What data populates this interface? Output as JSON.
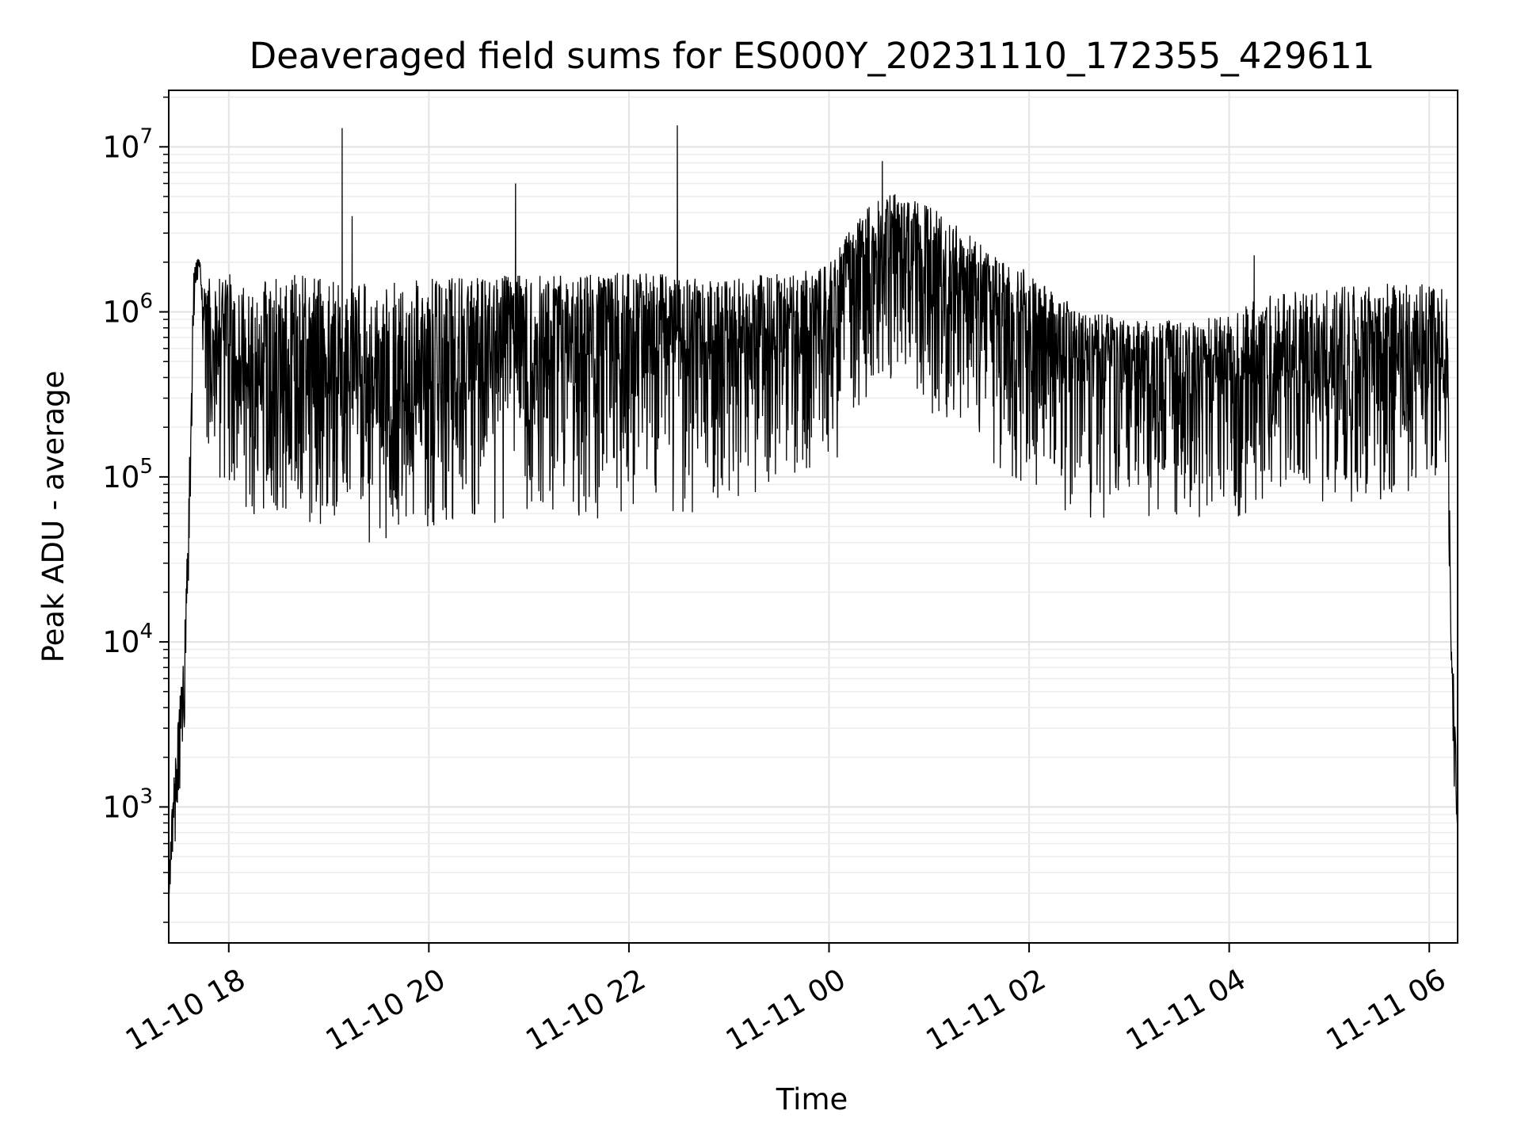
{
  "chart_data": {
    "type": "line",
    "title": "Deaveraged field sums for ES000Y_20231110_172355_429611",
    "xlabel": "Time",
    "ylabel": "Peak ADU - average",
    "yscale": "log",
    "xlim": [
      "2023-11-10 17:24",
      "2023-11-11 06:17"
    ],
    "ylim": [
      150,
      22000000
    ],
    "x_ticks": [
      "11-10 18",
      "11-10 20",
      "11-10 22",
      "11-11 00",
      "11-11 02",
      "11-11 04",
      "11-11 06"
    ],
    "x_tick_times": [
      "2023-11-10 18:00",
      "2023-11-10 20:00",
      "2023-11-10 22:00",
      "2023-11-11 00:00",
      "2023-11-11 02:00",
      "2023-11-11 04:00",
      "2023-11-11 06:00"
    ],
    "y_ticks": [
      {
        "base": "10",
        "exp": "3",
        "value": 1000
      },
      {
        "base": "10",
        "exp": "4",
        "value": 10000
      },
      {
        "base": "10",
        "exp": "5",
        "value": 100000
      },
      {
        "base": "10",
        "exp": "6",
        "value": 1000000
      },
      {
        "base": "10",
        "exp": "7",
        "value": 10000000
      }
    ],
    "grid": true,
    "line_color": "#000000",
    "series": [
      {
        "x": [
          "2023-11-10 17:24",
          "2023-11-10 17:27",
          "2023-11-10 17:30",
          "2023-11-10 17:33",
          "2023-11-10 17:36",
          "2023-11-10 17:39",
          "2023-11-10 17:42",
          "2023-11-10 17:45",
          "2023-11-10 17:48",
          "2023-11-10 17:51",
          "2023-11-10 17:55",
          "2023-11-10 18:00",
          "2023-11-10 18:10",
          "2023-11-10 18:20",
          "2023-11-10 18:30",
          "2023-11-10 18:40",
          "2023-11-10 18:50",
          "2023-11-10 19:00",
          "2023-11-10 19:08",
          "2023-11-10 19:10",
          "2023-11-10 19:20",
          "2023-11-10 19:30",
          "2023-11-10 19:40",
          "2023-11-10 19:50",
          "2023-11-10 20:00",
          "2023-11-10 20:20",
          "2023-11-10 20:40",
          "2023-11-10 20:52",
          "2023-11-10 21:00",
          "2023-11-10 21:20",
          "2023-11-10 21:40",
          "2023-11-10 22:00",
          "2023-11-10 22:20",
          "2023-11-10 22:29",
          "2023-11-10 22:40",
          "2023-11-10 23:00",
          "2023-11-10 23:20",
          "2023-11-10 23:40",
          "2023-11-11 00:00",
          "2023-11-11 00:15",
          "2023-11-11 00:32",
          "2023-11-11 00:45",
          "2023-11-11 01:00",
          "2023-11-11 01:15",
          "2023-11-11 01:30",
          "2023-11-11 01:45",
          "2023-11-11 02:00",
          "2023-11-11 02:20",
          "2023-11-11 02:40",
          "2023-11-11 03:00",
          "2023-11-11 03:20",
          "2023-11-11 03:40",
          "2023-11-11 04:00",
          "2023-11-11 04:15",
          "2023-11-11 04:30",
          "2023-11-11 05:00",
          "2023-11-11 05:30",
          "2023-11-11 06:00",
          "2023-11-11 06:08",
          "2023-11-11 06:11",
          "2023-11-11 06:13",
          "2023-11-11 06:15",
          "2023-11-11 06:17"
        ],
        "y_median": [
          300,
          900,
          2500,
          6000,
          40000,
          1500000,
          2100000,
          900000,
          700000,
          800000,
          600000,
          550000,
          500000,
          450000,
          400000,
          380000,
          350000,
          320000,
          330000,
          400000,
          300000,
          250000,
          280000,
          320000,
          380000,
          400000,
          480000,
          500000,
          550000,
          560000,
          580000,
          600000,
          620000,
          640000,
          650000,
          700000,
          750000,
          800000,
          900000,
          1500000,
          2500000,
          2300000,
          1800000,
          1500000,
          1200000,
          1000000,
          700000,
          550000,
          500000,
          450000,
          420000,
          400000,
          420000,
          440000,
          450000,
          470000,
          480000,
          500000,
          500000,
          300000,
          8000,
          3000,
          700
        ],
        "y_low": [
          250,
          500,
          900,
          2000,
          20000,
          700000,
          1500000,
          300000,
          100000,
          80000,
          60000,
          60000,
          55000,
          60000,
          55000,
          55000,
          50000,
          50000,
          60000,
          45000,
          40000,
          38000,
          40000,
          45000,
          50000,
          55000,
          50000,
          60000,
          60000,
          55000,
          55000,
          60000,
          55000,
          45000,
          60000,
          60000,
          80000,
          90000,
          100000,
          200000,
          400000,
          350000,
          250000,
          200000,
          120000,
          100000,
          90000,
          60000,
          55000,
          60000,
          55000,
          50000,
          55000,
          60000,
          65000,
          70000,
          70000,
          80000,
          80000,
          100000,
          3000,
          1000,
          600
        ],
        "y_high": [
          400,
          1500,
          4000,
          8000,
          80000,
          2000000,
          2200000,
          1500000,
          1600000,
          1800000,
          1700000,
          1700000,
          1600000,
          1600000,
          1600000,
          1700000,
          1600000,
          1600000,
          1500000,
          1500000,
          1500000,
          1500000,
          1500000,
          1600000,
          1600000,
          1600000,
          1700000,
          1700000,
          1700000,
          1700000,
          1700000,
          1800000,
          1700000,
          1600000,
          1600000,
          1600000,
          1700000,
          1700000,
          2000000,
          3500000,
          5500000,
          5000000,
          4500000,
          3500000,
          2600000,
          2000000,
          1800000,
          1200000,
          1000000,
          900000,
          900000,
          900000,
          1000000,
          1200000,
          1300000,
          1400000,
          1500000,
          1500000,
          1500000,
          1200000,
          10000,
          6000,
          2000
        ]
      }
    ],
    "spikes": [
      {
        "x": "2023-11-10 19:08",
        "y": 13000000
      },
      {
        "x": "2023-11-10 19:14",
        "y": 3800000
      },
      {
        "x": "2023-11-10 20:52",
        "y": 6000000
      },
      {
        "x": "2023-11-10 22:29",
        "y": 13500000
      },
      {
        "x": "2023-11-11 00:32",
        "y": 8200000
      },
      {
        "x": "2023-11-11 04:15",
        "y": 2200000
      }
    ]
  }
}
